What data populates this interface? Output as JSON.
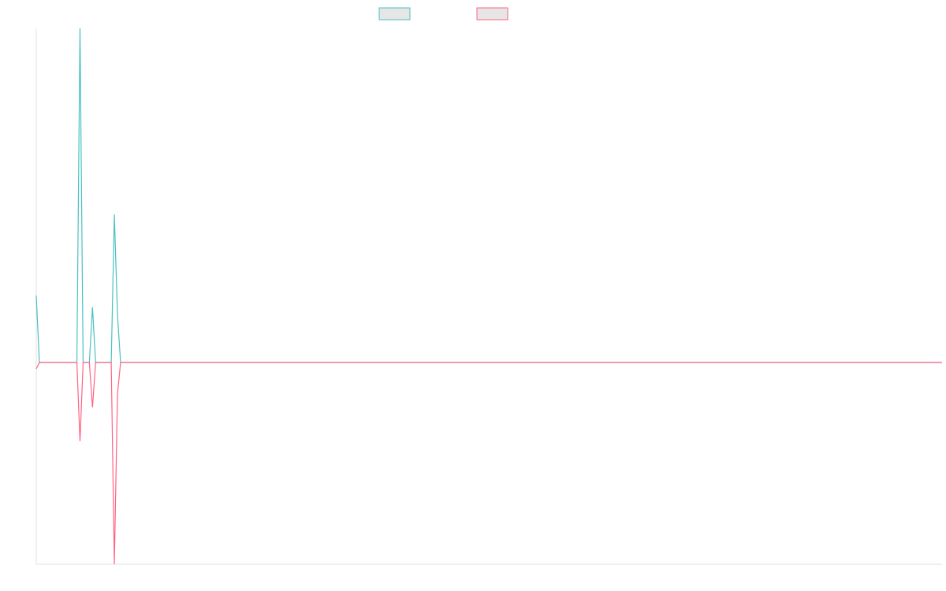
{
  "chart_data": {
    "type": "line",
    "x": [
      0,
      1,
      13,
      14,
      15,
      17,
      18,
      19,
      24,
      25,
      26,
      27,
      290
    ],
    "xlim": [
      0,
      290
    ],
    "ylim": [
      -256,
      424
    ],
    "series": [
      {
        "color": "#4bc0c0",
        "values": [
          85,
          0,
          0,
          424,
          0,
          0,
          70,
          0,
          0,
          188,
          60,
          0,
          0
        ]
      },
      {
        "color": "#ff6384",
        "values": [
          -8,
          0,
          0,
          -100,
          0,
          0,
          -57,
          0,
          0,
          -256,
          -40,
          0,
          0
        ]
      }
    ]
  }
}
